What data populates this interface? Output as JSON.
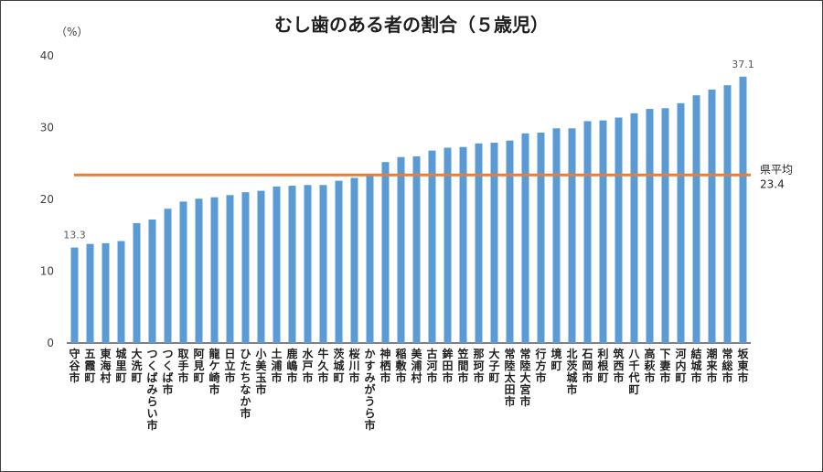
{
  "chart_data": {
    "type": "bar",
    "title": "むし歯のある者の割合（５歳児）",
    "ylabel": "（%）",
    "xlabel": "",
    "ylim": [
      0,
      40
    ],
    "yticks": [
      0,
      10,
      20,
      30,
      40
    ],
    "grid": false,
    "legend": "none",
    "categories": [
      "守谷市",
      "五霞町",
      "東海村",
      "城里町",
      "大洗町",
      "つくばみらい市",
      "つくば市",
      "取手市",
      "阿見町",
      "龍ケ崎市",
      "日立市",
      "ひたちなか市",
      "小美玉市",
      "土浦市",
      "鹿嶋市",
      "水戸市",
      "牛久市",
      "茨城町",
      "桜川市",
      "かすみがうら市",
      "神栖市",
      "稲敷市",
      "美浦村",
      "古河市",
      "鉾田市",
      "笠間市",
      "那珂市",
      "大子町",
      "常陸太田市",
      "常陸大宮市",
      "行方市",
      "境町",
      "北茨城市",
      "石岡市",
      "利根町",
      "筑西市",
      "八千代町",
      "高萩市",
      "下妻市",
      "河内町",
      "結城市",
      "潮来市",
      "常総市",
      "坂東市"
    ],
    "values": [
      13.3,
      13.8,
      13.9,
      14.2,
      16.7,
      17.2,
      18.7,
      19.7,
      20.1,
      20.3,
      20.6,
      21.0,
      21.2,
      21.8,
      21.9,
      22.0,
      22.0,
      22.6,
      23.0,
      23.3,
      25.2,
      25.9,
      26.0,
      26.8,
      27.2,
      27.3,
      27.8,
      27.9,
      28.2,
      29.2,
      29.3,
      29.9,
      29.9,
      30.9,
      31.0,
      31.4,
      32.0,
      32.6,
      32.7,
      33.4,
      34.5,
      35.3,
      35.9,
      37.1
    ],
    "data_labels": [
      {
        "index": 0,
        "text": "13.3"
      },
      {
        "index": 43,
        "text": "37.1"
      }
    ],
    "reference_line": {
      "label": "県平均",
      "value": 23.4,
      "value_text": "23.4"
    },
    "colors": {
      "bar": "#5b9bd5",
      "reference_line": "#ed7d31",
      "axis": "#000000"
    }
  }
}
